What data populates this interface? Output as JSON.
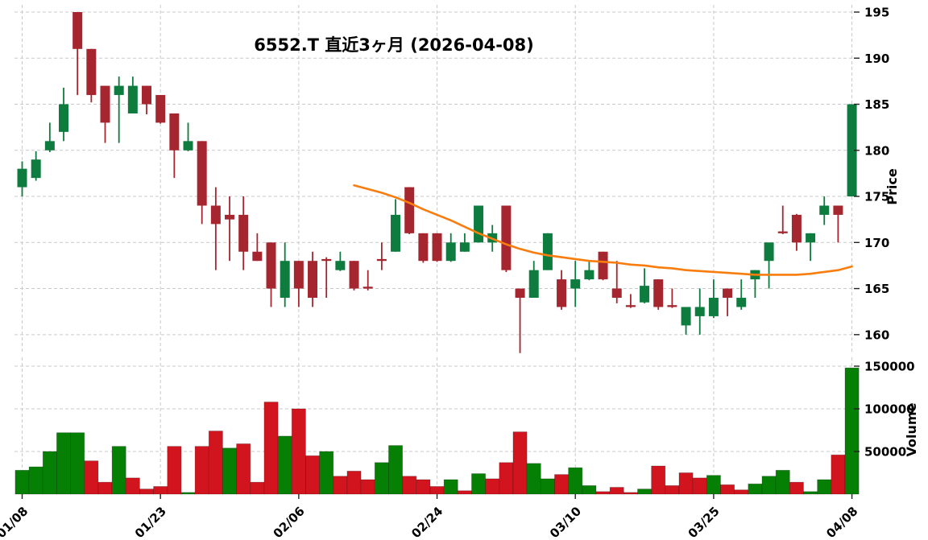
{
  "title": "6552.T 直近3ヶ月 (2026-04-08)",
  "price_axis": {
    "label": "Price",
    "ticks": [
      160,
      165,
      170,
      175,
      180,
      185,
      190,
      195
    ]
  },
  "volume_axis": {
    "label": "Volume",
    "ticks": [
      50000,
      100000,
      150000
    ]
  },
  "colors": {
    "candle_up": "#0e7c3f",
    "candle_down": "#a5262f",
    "volume_up": "#058005",
    "volume_down": "#d2141f",
    "ma_line": "#f97d0e",
    "grid": "#c9c9c9",
    "tick": "#222222",
    "text": "#000000",
    "background": "#ffffff"
  },
  "chart_data": {
    "type": "candlestick+volume",
    "symbol": "6552.T",
    "period_label": "直近3ヶ月",
    "as_of_date": "2026-04-08",
    "price_ylim": [
      157,
      196.5
    ],
    "volume_ylim": [
      0,
      160000
    ],
    "x_ticks": [
      {
        "index": 0,
        "label": "01/08"
      },
      {
        "index": 10,
        "label": "01/23"
      },
      {
        "index": 20,
        "label": "02/06"
      },
      {
        "index": 30,
        "label": "02/24"
      },
      {
        "index": 40,
        "label": "03/10"
      },
      {
        "index": 50,
        "label": "03/25"
      },
      {
        "index": 60,
        "label": "04/08"
      }
    ],
    "ohlc": [
      [
        176,
        178.8,
        175,
        178
      ],
      [
        177,
        179.9,
        176.7,
        179
      ],
      [
        180,
        183,
        179.8,
        181
      ],
      [
        182,
        186.8,
        181,
        185
      ],
      [
        195,
        195,
        186,
        191
      ],
      [
        191,
        191,
        185.2,
        186
      ],
      [
        187,
        187,
        180.8,
        183
      ],
      [
        186,
        188,
        180.8,
        187
      ],
      [
        184,
        188,
        184,
        187
      ],
      [
        187,
        187,
        183.9,
        185
      ],
      [
        186,
        186,
        182.9,
        183
      ],
      [
        184,
        184,
        177,
        180
      ],
      [
        180,
        183,
        179.9,
        181
      ],
      [
        181,
        181,
        172,
        174
      ],
      [
        174,
        176,
        167,
        172
      ],
      [
        173,
        175,
        168,
        172.5
      ],
      [
        173,
        175,
        167,
        169
      ],
      [
        169,
        171,
        168,
        168
      ],
      [
        170,
        170,
        163,
        165
      ],
      [
        164,
        170,
        163,
        168
      ],
      [
        168,
        168,
        163,
        165
      ],
      [
        168,
        169,
        163,
        164
      ],
      [
        168.2,
        168.4,
        164,
        168
      ],
      [
        167,
        169,
        166.9,
        168
      ],
      [
        168,
        168,
        164.8,
        165
      ],
      [
        165.2,
        167,
        164.8,
        165
      ],
      [
        168.2,
        170,
        167,
        168
      ],
      [
        169,
        174.7,
        169,
        173
      ],
      [
        176,
        176,
        170.9,
        171
      ],
      [
        171,
        171,
        167.8,
        168
      ],
      [
        171,
        171,
        167.9,
        168
      ],
      [
        168,
        171,
        167.9,
        170
      ],
      [
        169,
        171,
        169,
        170
      ],
      [
        170,
        174,
        170,
        174
      ],
      [
        170,
        171.9,
        169,
        171
      ],
      [
        174,
        174,
        166.8,
        167
      ],
      [
        165,
        165,
        158,
        164
      ],
      [
        164,
        168,
        164,
        167
      ],
      [
        167,
        171,
        167,
        171
      ],
      [
        166,
        167,
        162.7,
        163
      ],
      [
        165,
        168,
        163,
        166
      ],
      [
        166,
        168,
        165.9,
        167
      ],
      [
        169,
        169,
        165.9,
        166
      ],
      [
        165,
        168,
        163.4,
        164
      ],
      [
        163.2,
        164.4,
        162.9,
        163
      ],
      [
        163.5,
        167.2,
        163.4,
        165.3
      ],
      [
        166,
        166,
        162.7,
        163
      ],
      [
        163.2,
        165,
        162.9,
        163
      ],
      [
        161,
        163,
        160,
        163
      ],
      [
        162,
        165,
        160,
        163
      ],
      [
        162,
        166,
        161.8,
        164
      ],
      [
        165,
        165,
        162,
        164
      ],
      [
        163,
        166,
        162.7,
        164
      ],
      [
        166,
        167,
        164,
        167
      ],
      [
        168,
        170,
        165,
        170
      ],
      [
        171.2,
        174,
        170.9,
        171
      ],
      [
        173,
        173.1,
        169.1,
        170
      ],
      [
        170,
        171,
        168,
        171
      ],
      [
        173,
        175,
        171.9,
        174
      ],
      [
        174,
        174,
        170,
        173
      ],
      [
        175,
        185,
        175,
        185
      ]
    ],
    "volume": [
      28000,
      32000,
      50000,
      72000,
      72000,
      39000,
      14000,
      56000,
      19000,
      6000,
      9000,
      56000,
      2000,
      56000,
      74000,
      54000,
      59000,
      14000,
      108000,
      68000,
      100000,
      45000,
      50000,
      21000,
      27000,
      17000,
      37000,
      57000,
      21000,
      17000,
      9000,
      17000,
      4000,
      24000,
      18000,
      37000,
      73000,
      36000,
      18000,
      23000,
      31000,
      10000,
      3000,
      8000,
      2000,
      6000,
      33000,
      10000,
      25000,
      19000,
      22000,
      11000,
      5000,
      12000,
      21000,
      28000,
      14000,
      3000,
      17000,
      46000,
      148000
    ],
    "volume_colors": "gggggrrgrrrrgrrgrrrgrrgrrrggrrrgrgrrrggrggrrrgrrrrgrrgggrggrg",
    "ma_start_index": 24,
    "ma": [
      176.2,
      175.8,
      175.4,
      174.9,
      174.3,
      173.6,
      173.0,
      172.4,
      171.7,
      171.0,
      170.4,
      169.8,
      169.3,
      168.9,
      168.6,
      168.4,
      168.2,
      168.0,
      167.9,
      167.8,
      167.6,
      167.5,
      167.3,
      167.2,
      167.0,
      166.9,
      166.8,
      166.7,
      166.6,
      166.5,
      166.5,
      166.5,
      166.5,
      166.6,
      166.8,
      167.0,
      167.4
    ]
  }
}
